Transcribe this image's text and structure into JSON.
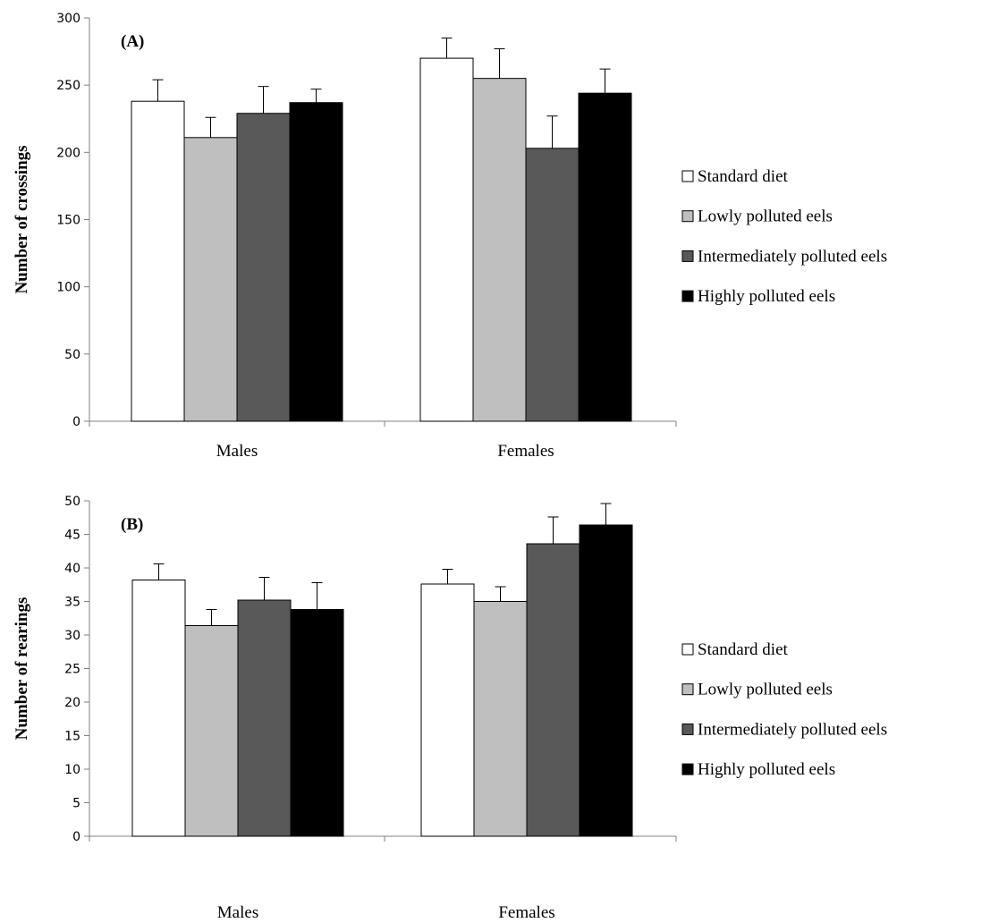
{
  "chart_data": [
    {
      "type": "bar",
      "panel_label": "(A)",
      "ylabel": "Number of crossings",
      "xlabel": "",
      "ylim": [
        0,
        300
      ],
      "yticks": [
        0,
        50,
        100,
        150,
        200,
        250,
        300
      ],
      "categories": [
        "Males",
        "Females"
      ],
      "series": [
        {
          "name": "Standard diet",
          "color": "#ffffff",
          "values": [
            238,
            270
          ],
          "errors": [
            16,
            15
          ]
        },
        {
          "name": "Lowly polluted eels",
          "color": "#bfbfbf",
          "values": [
            211,
            255
          ],
          "errors": [
            15,
            22
          ]
        },
        {
          "name": "Intermediately polluted eels",
          "color": "#595959",
          "values": [
            229,
            203
          ],
          "errors": [
            20,
            24
          ]
        },
        {
          "name": "Highly polluted eels",
          "color": "#000000",
          "values": [
            237,
            244
          ],
          "errors": [
            10,
            18
          ]
        }
      ],
      "error_bars": true,
      "grid": false,
      "legend_position": "right"
    },
    {
      "type": "bar",
      "panel_label": "(B)",
      "ylabel": "Number of rearings",
      "xlabel": "",
      "ylim": [
        0,
        50
      ],
      "yticks": [
        0,
        5,
        10,
        15,
        20,
        25,
        30,
        35,
        40,
        45,
        50
      ],
      "categories": [
        "Males",
        "Females"
      ],
      "series": [
        {
          "name": "Standard diet",
          "color": "#ffffff",
          "values": [
            38.2,
            37.6
          ],
          "errors": [
            2.4,
            2.2
          ]
        },
        {
          "name": "Lowly polluted eels",
          "color": "#bfbfbf",
          "values": [
            31.4,
            35.0
          ],
          "errors": [
            2.4,
            2.2
          ]
        },
        {
          "name": "Intermediately polluted eels",
          "color": "#595959",
          "values": [
            35.2,
            43.6
          ],
          "errors": [
            3.4,
            4.0
          ]
        },
        {
          "name": "Highly polluted eels",
          "color": "#000000",
          "values": [
            33.8,
            46.4
          ],
          "errors": [
            4.0,
            3.2
          ]
        }
      ],
      "error_bars": true,
      "grid": false,
      "legend_position": "right"
    }
  ]
}
